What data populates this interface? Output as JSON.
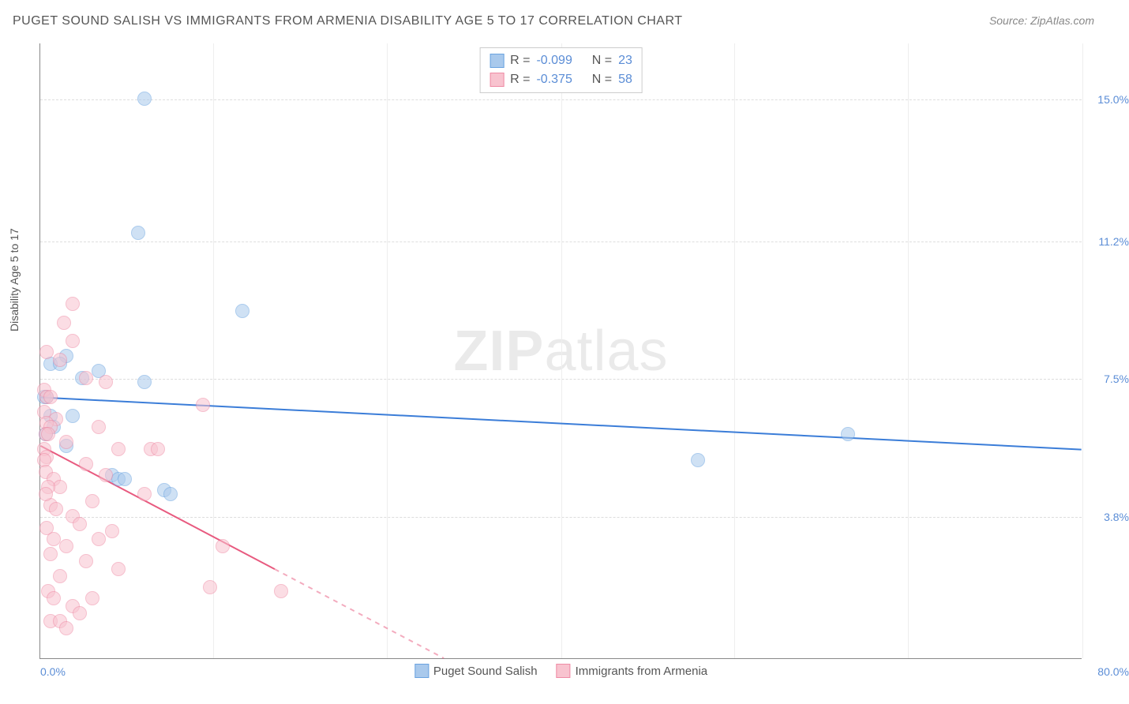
{
  "title": "PUGET SOUND SALISH VS IMMIGRANTS FROM ARMENIA DISABILITY AGE 5 TO 17 CORRELATION CHART",
  "source": "Source: ZipAtlas.com",
  "watermark_bold": "ZIP",
  "watermark_light": "atlas",
  "chart": {
    "type": "scatter",
    "y_axis_label": "Disability Age 5 to 17",
    "xlim": [
      0,
      80
    ],
    "ylim": [
      0,
      16.5
    ],
    "x_min_label": "0.0%",
    "x_max_label": "80.0%",
    "y_ticks": [
      {
        "v": 3.8,
        "label": "3.8%"
      },
      {
        "v": 7.5,
        "label": "7.5%"
      },
      {
        "v": 11.2,
        "label": "11.2%"
      },
      {
        "v": 15.0,
        "label": "15.0%"
      }
    ],
    "gridlines_v_at": [
      13.3,
      26.6,
      40,
      53.3,
      66.6,
      80
    ],
    "background_color": "#ffffff",
    "grid_color": "#dddddd",
    "point_radius": 9,
    "point_opacity": 0.55,
    "series": [
      {
        "name": "Puget Sound Salish",
        "color_fill": "#a9c9ec",
        "color_stroke": "#6aa3e0",
        "R": "-0.099",
        "N": "23",
        "trend": {
          "x1": 0,
          "y1": 7.0,
          "x2": 80,
          "y2": 5.6,
          "solid_until_x": 80,
          "color": "#3b7dd8",
          "width": 2
        },
        "points": [
          [
            8.0,
            15.0
          ],
          [
            7.5,
            11.4
          ],
          [
            15.5,
            9.3
          ],
          [
            2.0,
            8.1
          ],
          [
            0.8,
            7.9
          ],
          [
            1.5,
            7.9
          ],
          [
            4.5,
            7.7
          ],
          [
            3.2,
            7.5
          ],
          [
            8.0,
            7.4
          ],
          [
            0.5,
            7.0
          ],
          [
            0.3,
            7.0
          ],
          [
            2.5,
            6.5
          ],
          [
            0.8,
            6.5
          ],
          [
            5.5,
            4.9
          ],
          [
            6.0,
            4.8
          ],
          [
            6.5,
            4.8
          ],
          [
            9.5,
            4.5
          ],
          [
            10.0,
            4.4
          ],
          [
            50.5,
            5.3
          ],
          [
            62.0,
            6.0
          ],
          [
            1.0,
            6.2
          ],
          [
            0.4,
            6.0
          ],
          [
            2.0,
            5.7
          ]
        ]
      },
      {
        "name": "Immigrants from Armenia",
        "color_fill": "#f8c3cf",
        "color_stroke": "#ef8ba5",
        "R": "-0.375",
        "N": "58",
        "trend": {
          "x1": 0,
          "y1": 5.7,
          "x2": 31,
          "y2": 0,
          "solid_until_x": 18,
          "color": "#e85a7f",
          "width": 2
        },
        "points": [
          [
            2.5,
            9.5
          ],
          [
            1.8,
            9.0
          ],
          [
            2.5,
            8.5
          ],
          [
            0.5,
            8.2
          ],
          [
            1.5,
            8.0
          ],
          [
            3.5,
            7.5
          ],
          [
            5.0,
            7.4
          ],
          [
            0.3,
            7.2
          ],
          [
            0.5,
            7.0
          ],
          [
            0.8,
            7.0
          ],
          [
            12.5,
            6.8
          ],
          [
            0.3,
            6.6
          ],
          [
            1.2,
            6.4
          ],
          [
            0.5,
            6.3
          ],
          [
            4.5,
            6.2
          ],
          [
            0.8,
            6.2
          ],
          [
            0.4,
            6.0
          ],
          [
            0.6,
            6.0
          ],
          [
            2.0,
            5.8
          ],
          [
            0.3,
            5.6
          ],
          [
            6.0,
            5.6
          ],
          [
            8.5,
            5.6
          ],
          [
            9.0,
            5.6
          ],
          [
            0.5,
            5.4
          ],
          [
            0.3,
            5.3
          ],
          [
            3.5,
            5.2
          ],
          [
            0.4,
            5.0
          ],
          [
            5.0,
            4.9
          ],
          [
            1.0,
            4.8
          ],
          [
            1.5,
            4.6
          ],
          [
            0.6,
            4.6
          ],
          [
            8.0,
            4.4
          ],
          [
            4.0,
            4.2
          ],
          [
            0.8,
            4.1
          ],
          [
            1.2,
            4.0
          ],
          [
            2.5,
            3.8
          ],
          [
            3.0,
            3.6
          ],
          [
            0.5,
            3.5
          ],
          [
            5.5,
            3.4
          ],
          [
            1.0,
            3.2
          ],
          [
            4.5,
            3.2
          ],
          [
            2.0,
            3.0
          ],
          [
            14.0,
            3.0
          ],
          [
            0.8,
            2.8
          ],
          [
            3.5,
            2.6
          ],
          [
            6.0,
            2.4
          ],
          [
            1.5,
            2.2
          ],
          [
            13.0,
            1.9
          ],
          [
            0.6,
            1.8
          ],
          [
            1.0,
            1.6
          ],
          [
            4.0,
            1.6
          ],
          [
            2.5,
            1.4
          ],
          [
            3.0,
            1.2
          ],
          [
            0.8,
            1.0
          ],
          [
            18.5,
            1.8
          ],
          [
            1.5,
            1.0
          ],
          [
            2.0,
            0.8
          ],
          [
            0.4,
            4.4
          ]
        ]
      }
    ]
  },
  "stats_box": {
    "label_R": "R =",
    "label_N": "N ="
  }
}
